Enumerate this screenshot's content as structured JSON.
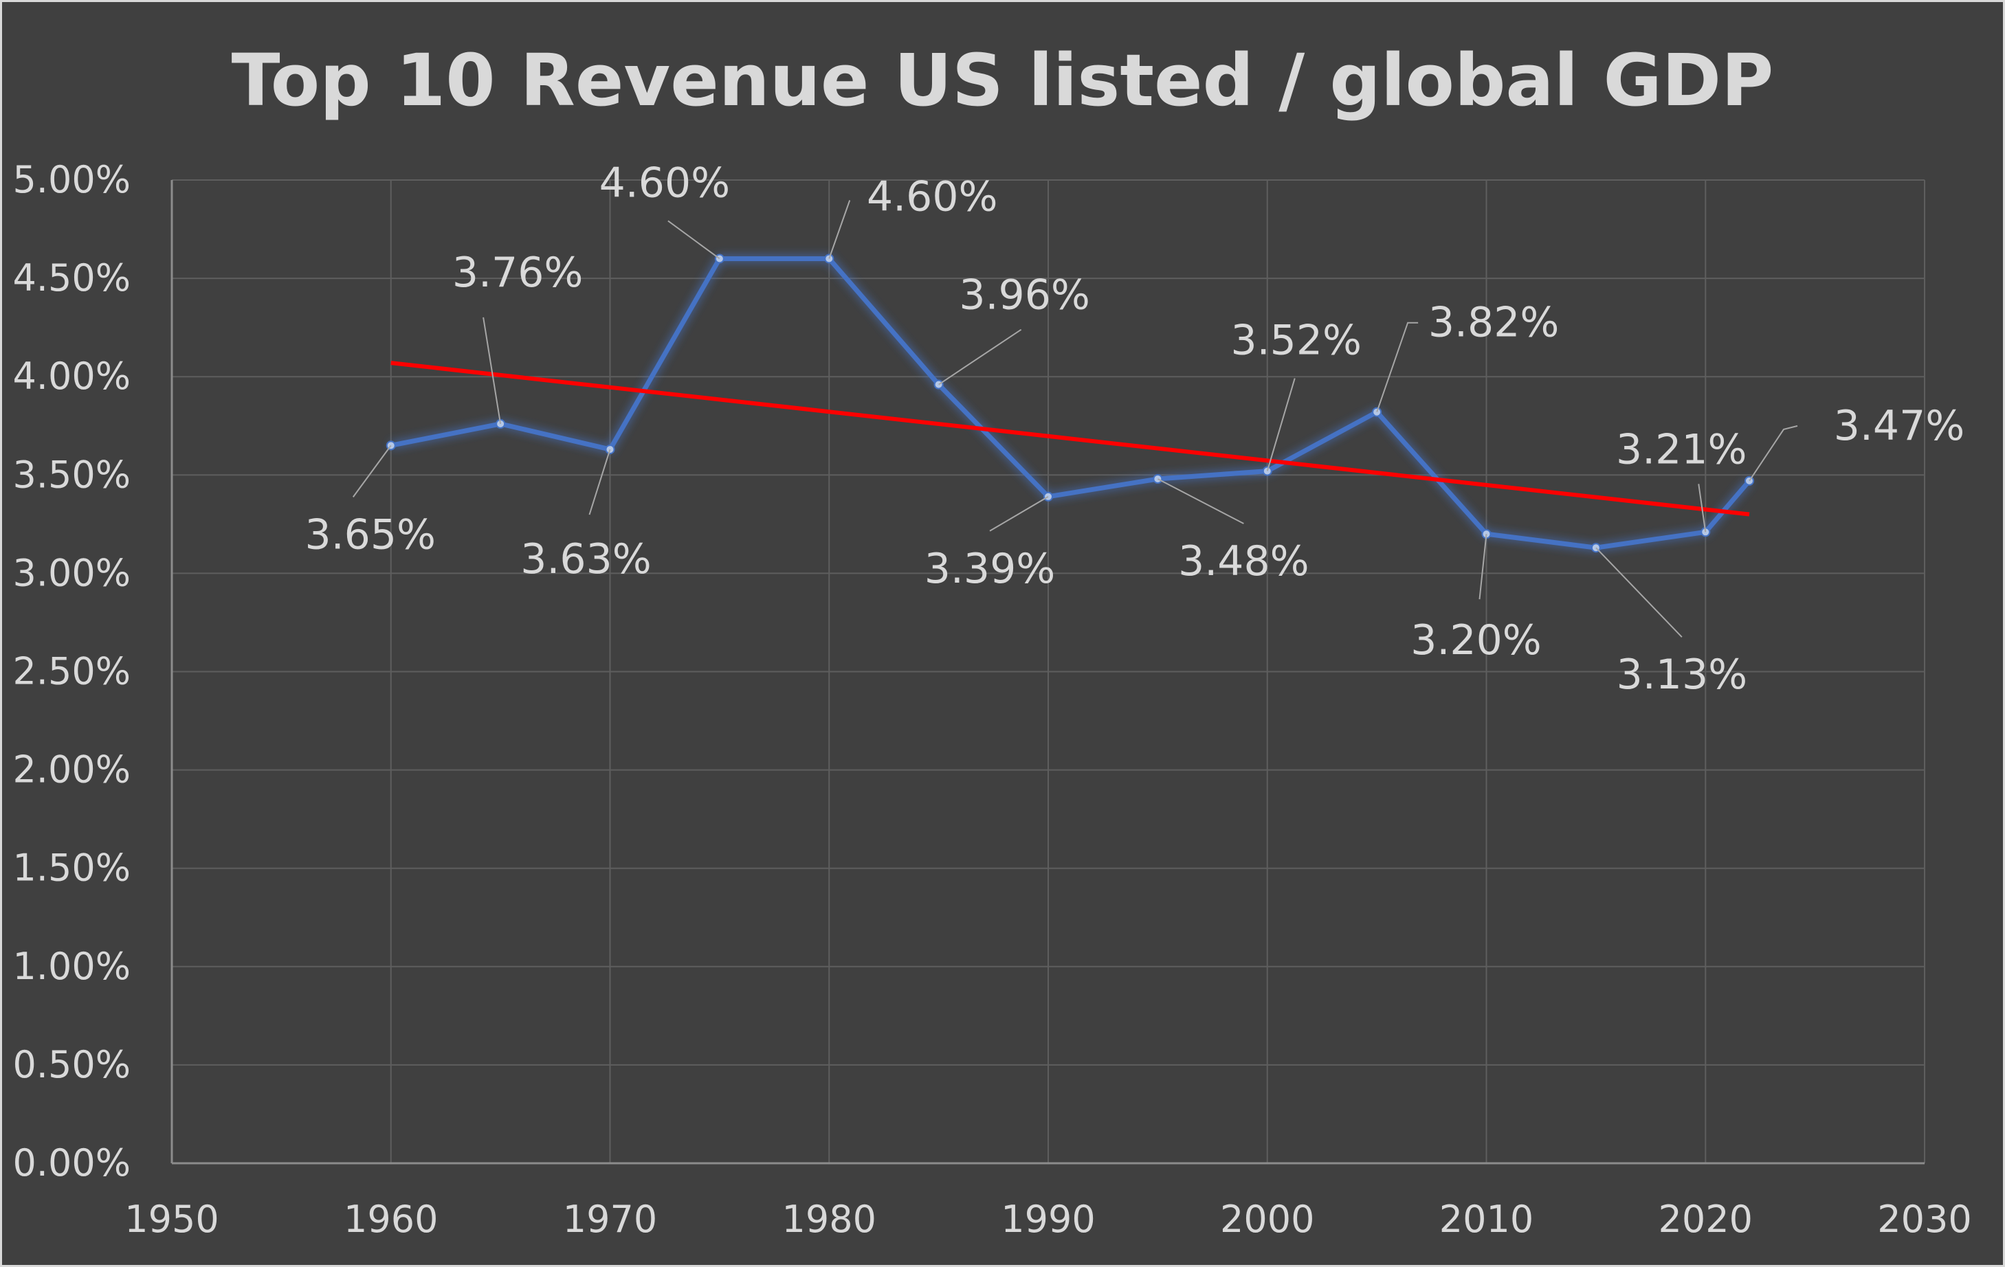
{
  "chart_data": {
    "type": "line",
    "title": "Top 10 Revenue US listed / global GDP",
    "xlabel": "",
    "ylabel": "",
    "xlim": [
      1950,
      2030
    ],
    "ylim": [
      0,
      0.05
    ],
    "x_ticks": [
      "1950",
      "1960",
      "1970",
      "1980",
      "1990",
      "2000",
      "2010",
      "2020",
      "2030"
    ],
    "y_ticks": [
      "0.00%",
      "0.50%",
      "1.00%",
      "1.50%",
      "2.00%",
      "2.50%",
      "3.00%",
      "3.50%",
      "4.00%",
      "4.50%",
      "5.00%"
    ],
    "grid": true,
    "legend": "none",
    "series": [
      {
        "color": "#4472c4",
        "x": [
          1960,
          1965,
          1970,
          1975,
          1980,
          1985,
          1990,
          1995,
          2000,
          2005,
          2010,
          2015,
          2020,
          2022
        ],
        "y": [
          0.0365,
          0.0376,
          0.0363,
          0.046,
          0.046,
          0.0396,
          0.0339,
          0.0348,
          0.0352,
          0.0382,
          0.032,
          0.0313,
          0.0321,
          0.0347
        ],
        "data_labels": [
          "3.65%",
          "3.76%",
          "3.63%",
          "4.60%",
          "4.60%",
          "3.96%",
          "3.39%",
          "3.48%",
          "3.52%",
          "3.82%",
          "3.20%",
          "3.13%",
          "3.21%",
          "3.47%"
        ]
      }
    ],
    "trendline": {
      "type": "linear",
      "color": "#ff0000",
      "x": [
        1960,
        2022
      ],
      "y": [
        0.0407,
        0.033
      ]
    }
  }
}
